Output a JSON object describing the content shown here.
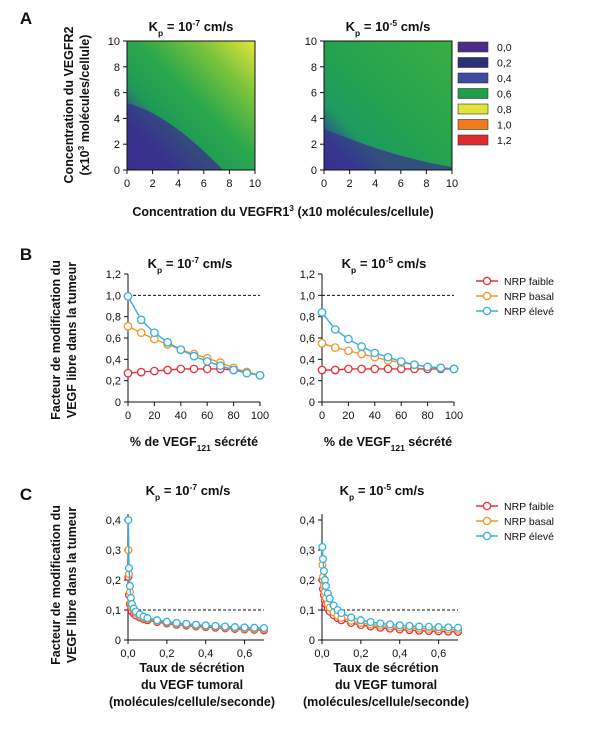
{
  "figure": {
    "panel_letters": [
      "A",
      "B",
      "C"
    ]
  },
  "colors": {
    "nrp_faible": "#e8303a",
    "nrp_basal": "#f0962a",
    "nrp_eleve": "#34b1dd",
    "colorbar": [
      "#4b2d87",
      "#2a3173",
      "#3f4aa0",
      "#1f9f4a",
      "#e0e33a",
      "#f07b1e",
      "#e02b2b"
    ]
  },
  "panelA": {
    "letter": "A",
    "titles": [
      "K_p = 10^-7 cm/s",
      "K_p = 10^-5 cm/s"
    ],
    "title_parts": [
      {
        "base": "K",
        "sub": "p",
        "mid": " = 10",
        "sup": "-7",
        "end": " cm/s"
      },
      {
        "base": "K",
        "sub": "p",
        "mid": " = 10",
        "sup": "-5",
        "end": " cm/s"
      }
    ],
    "ylabel_line1": "Concentration du VEGFR2",
    "ylabel_line2_a": "(x10",
    "ylabel_line2_sup": "3",
    "ylabel_line2_b": " molécules/cellule)",
    "xlabel_a": "Concentration du VEGFR1",
    "xlabel_sup": "3",
    "xlabel_b": " (x10",
    "xlabel_c": "  molécules/cellule)",
    "colorbar_labels": [
      "0,0",
      "0,2",
      "0,4",
      "0,6",
      "0,8",
      "1,0",
      "1,2"
    ],
    "x_ticks": [
      "0",
      "2",
      "4",
      "6",
      "8",
      "10"
    ],
    "y_ticks": [
      "0",
      "2",
      "4",
      "6",
      "8",
      "10"
    ]
  },
  "panelB": {
    "letter": "B",
    "ylabel_line1": "Facteur de modification du",
    "ylabel_line2": "VEGF libre dans la tumeur",
    "xlabel_a": "% de VEGF",
    "xlabel_sub": "121",
    "xlabel_b": " sécrété",
    "legend": [
      "NRP faible",
      "NRP basal",
      "NRP élevé"
    ],
    "y_ticks": [
      "0",
      "0,2",
      "0,4",
      "0,6",
      "0,8",
      "1,0",
      "1,2"
    ],
    "x_ticks": [
      "0",
      "20",
      "40",
      "60",
      "80",
      "100"
    ]
  },
  "panelC": {
    "letter": "C",
    "ylabel_line1": "Facteur de modification du",
    "ylabel_line2": "VEGF libre dans la tumeur",
    "xlabel_line1": "Taux de sécrétion",
    "xlabel_line2": "du VEGF tumoral",
    "xlabel_line3": "(molécules/cellule/seconde)",
    "legend": [
      "NRP faible",
      "NRP basal",
      "NRP élevé"
    ],
    "y_ticks": [
      "0",
      "0,1",
      "0,2",
      "0,3",
      "0,4"
    ],
    "x_ticks": [
      "0,0",
      "0,2",
      "0,4",
      "0,6"
    ]
  },
  "chart_data": [
    {
      "type": "heatmap",
      "panel": "A-left",
      "title": "Kp = 10-7 cm/s",
      "xlabel": "Concentration du VEGFR1 (x10^3 molécules/cellule)",
      "ylabel": "Concentration du VEGFR2 (x10^3 molécules/cellule)",
      "xlim": [
        0,
        10
      ],
      "ylim": [
        0,
        10
      ],
      "color_scale": [
        0.0,
        1.2
      ],
      "corner_values": {
        "x0_y0": 0.4,
        "x10_y0": 0.6,
        "x0_y10": 0.6,
        "x10_y10": 0.8
      }
    },
    {
      "type": "heatmap",
      "panel": "A-right",
      "title": "Kp = 10-5 cm/s",
      "xlabel": "Concentration du VEGFR1 (x10^3 molécules/cellule)",
      "ylabel": "Concentration du VEGFR2 (x10^3 molécules/cellule)",
      "xlim": [
        0,
        10
      ],
      "ylim": [
        0,
        10
      ],
      "color_scale": [
        0.0,
        1.2
      ],
      "corner_values": {
        "x0_y0": 0.4,
        "x10_y0": 0.6,
        "x0_y10": 0.6,
        "x10_y10": 0.6
      }
    },
    {
      "type": "line",
      "panel": "B-left",
      "title": "Kp = 10-7 cm/s",
      "xlabel": "% de VEGF121 sécrété",
      "ylabel": "Facteur de modification du VEGF libre dans la tumeur",
      "xlim": [
        0,
        100
      ],
      "ylim": [
        0,
        1.2
      ],
      "reference_line": 1.0,
      "x": [
        0,
        10,
        20,
        30,
        40,
        50,
        60,
        70,
        80,
        90,
        100
      ],
      "series": [
        {
          "name": "NRP faible",
          "values": [
            0.27,
            0.28,
            0.29,
            0.3,
            0.31,
            0.31,
            0.31,
            0.31,
            0.3,
            0.28,
            0.25
          ]
        },
        {
          "name": "NRP basal",
          "values": [
            0.71,
            0.65,
            0.59,
            0.54,
            0.49,
            0.45,
            0.41,
            0.37,
            0.32,
            0.28,
            0.25
          ]
        },
        {
          "name": "NRP élevé",
          "values": [
            0.99,
            0.77,
            0.65,
            0.56,
            0.49,
            0.43,
            0.38,
            0.34,
            0.3,
            0.27,
            0.25
          ]
        }
      ]
    },
    {
      "type": "line",
      "panel": "B-right",
      "title": "Kp = 10-5 cm/s",
      "xlabel": "% de VEGF121 sécrété",
      "ylabel": "Facteur de modification du VEGF libre dans la tumeur",
      "xlim": [
        0,
        100
      ],
      "ylim": [
        0,
        1.2
      ],
      "reference_line": 1.0,
      "x": [
        0,
        10,
        20,
        30,
        40,
        50,
        60,
        70,
        80,
        90,
        100
      ],
      "series": [
        {
          "name": "NRP faible",
          "values": [
            0.3,
            0.3,
            0.31,
            0.31,
            0.31,
            0.31,
            0.31,
            0.31,
            0.31,
            0.31,
            0.31
          ]
        },
        {
          "name": "NRP basal",
          "values": [
            0.55,
            0.51,
            0.48,
            0.45,
            0.42,
            0.39,
            0.37,
            0.35,
            0.33,
            0.32,
            0.31
          ]
        },
        {
          "name": "NRP élevé",
          "values": [
            0.84,
            0.68,
            0.59,
            0.52,
            0.46,
            0.42,
            0.38,
            0.35,
            0.33,
            0.32,
            0.31
          ]
        }
      ]
    },
    {
      "type": "line",
      "panel": "C-left",
      "title": "Kp = 10-7 cm/s",
      "xlabel": "Taux de sécrétion du VEGF tumoral (molécules/cellule/seconde)",
      "ylabel": "Facteur de modification du VEGF libre dans la tumeur",
      "xlim": [
        0,
        0.7
      ],
      "ylim": [
        0,
        0.42
      ],
      "reference_line": 0.1,
      "x": [
        0.002,
        0.005,
        0.01,
        0.015,
        0.02,
        0.03,
        0.04,
        0.06,
        0.08,
        0.1,
        0.15,
        0.2,
        0.25,
        0.3,
        0.35,
        0.4,
        0.45,
        0.5,
        0.55,
        0.6,
        0.65,
        0.7
      ],
      "series": [
        {
          "name": "NRP faible",
          "values": [
            0.21,
            0.15,
            0.12,
            0.1,
            0.095,
            0.088,
            0.082,
            0.075,
            0.07,
            0.066,
            0.06,
            0.055,
            0.051,
            0.048,
            0.045,
            0.043,
            0.041,
            0.039,
            0.037,
            0.035,
            0.034,
            0.032
          ]
        },
        {
          "name": "NRP basal",
          "values": [
            0.3,
            0.22,
            0.16,
            0.125,
            0.11,
            0.098,
            0.09,
            0.08,
            0.074,
            0.07,
            0.063,
            0.058,
            0.054,
            0.051,
            0.048,
            0.046,
            0.044,
            0.042,
            0.04,
            0.038,
            0.037,
            0.036
          ]
        },
        {
          "name": "NRP élevé",
          "values": [
            0.4,
            0.24,
            0.18,
            0.14,
            0.12,
            0.105,
            0.095,
            0.085,
            0.078,
            0.073,
            0.066,
            0.061,
            0.057,
            0.054,
            0.051,
            0.049,
            0.047,
            0.045,
            0.043,
            0.042,
            0.041,
            0.04
          ]
        }
      ]
    },
    {
      "type": "line",
      "panel": "C-right",
      "title": "Kp = 10-5 cm/s",
      "xlabel": "Taux de sécrétion du VEGF tumoral (molécules/cellule/seconde)",
      "ylabel": "Facteur de modification du VEGF libre dans la tumeur",
      "xlim": [
        0,
        0.7
      ],
      "ylim": [
        0,
        0.42
      ],
      "reference_line": 0.1,
      "x": [
        0.002,
        0.005,
        0.01,
        0.015,
        0.02,
        0.03,
        0.04,
        0.06,
        0.08,
        0.1,
        0.15,
        0.2,
        0.25,
        0.3,
        0.35,
        0.4,
        0.45,
        0.5,
        0.55,
        0.6,
        0.65,
        0.7
      ],
      "series": [
        {
          "name": "NRP faible",
          "values": [
            0.2,
            0.17,
            0.15,
            0.13,
            0.12,
            0.105,
            0.095,
            0.082,
            0.073,
            0.066,
            0.057,
            0.05,
            0.045,
            0.041,
            0.038,
            0.035,
            0.033,
            0.031,
            0.03,
            0.029,
            0.028,
            0.027
          ]
        },
        {
          "name": "NRP basal",
          "values": [
            0.25,
            0.21,
            0.18,
            0.16,
            0.14,
            0.12,
            0.108,
            0.092,
            0.081,
            0.074,
            0.064,
            0.057,
            0.052,
            0.048,
            0.045,
            0.042,
            0.04,
            0.038,
            0.037,
            0.036,
            0.035,
            0.034
          ]
        },
        {
          "name": "NRP élevé",
          "values": [
            0.31,
            0.27,
            0.23,
            0.2,
            0.18,
            0.155,
            0.138,
            0.115,
            0.1,
            0.09,
            0.075,
            0.066,
            0.06,
            0.055,
            0.052,
            0.049,
            0.047,
            0.045,
            0.044,
            0.043,
            0.042,
            0.041
          ]
        }
      ]
    }
  ]
}
